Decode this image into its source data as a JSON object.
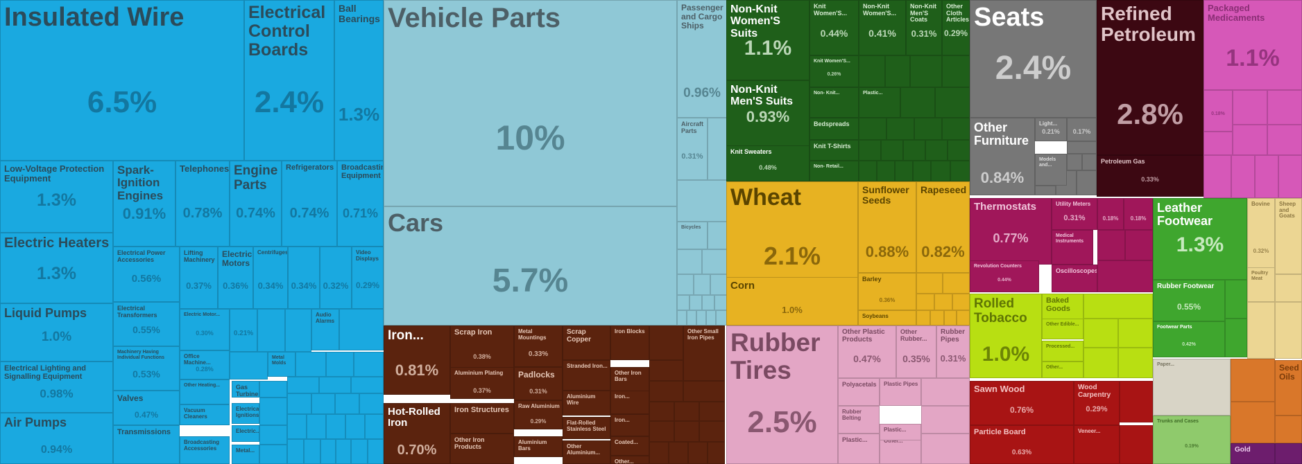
{
  "chart_data": {
    "type": "treemap",
    "unit": "%",
    "groups": [
      {
        "name": "machinery",
        "color": "#1aa9e0",
        "text_dark": "#126f96"
      },
      {
        "name": "transportation",
        "color": "#8fc8d6",
        "text_dark": "#4d7a86"
      },
      {
        "name": "textiles",
        "color": "#1f5f1a",
        "text_dark": "#d7ecd3"
      },
      {
        "name": "furniture",
        "color": "#777777",
        "text_dark": "#dddddd"
      },
      {
        "name": "minerals",
        "color": "#3c0812",
        "text_dark": "#d9b9bf"
      },
      {
        "name": "chemicals",
        "color": "#d658b8",
        "text_dark": "#8a2e75"
      },
      {
        "name": "vegetable",
        "color": "#e7b222",
        "text_dark": "#7a5a08"
      },
      {
        "name": "metals",
        "color": "#5b230e",
        "text_dark": "#e6c8b8"
      },
      {
        "name": "plastics",
        "color": "#e3a6c5",
        "text_dark": "#7a4a62"
      },
      {
        "name": "instruments",
        "color": "#a0175a",
        "text_dark": "#f1c6dc"
      },
      {
        "name": "footwear",
        "color": "#3fa62e",
        "text_dark": "#dff5d9"
      },
      {
        "name": "foodstuffs",
        "color": "#b8df12",
        "text_dark": "#5f7504"
      },
      {
        "name": "wood",
        "color": "#a81414",
        "text_dark": "#f3c2c2"
      },
      {
        "name": "animal",
        "color": "#ecd693",
        "text_dark": "#8a7540"
      },
      {
        "name": "stone",
        "color": "#d8d4c6",
        "text_dark": "#76725f"
      },
      {
        "name": "hides",
        "color": "#8fca6c",
        "text_dark": "#3e6b25"
      },
      {
        "name": "oils",
        "color": "#d9772a",
        "text_dark": "#7a3c0a"
      },
      {
        "name": "precious",
        "color": "#6d1d6d",
        "text_dark": "#f0d0f0"
      }
    ],
    "items": [
      {
        "name": "Insulated Wire",
        "value": 6.5,
        "value_label": "6.5%",
        "group": "machinery"
      },
      {
        "name": "Electrical Control Boards",
        "value": 2.4,
        "value_label": "2.4%",
        "group": "machinery"
      },
      {
        "name": "Ball Bearings",
        "value": 1.3,
        "value_label": "1.3%",
        "group": "machinery"
      },
      {
        "name": "Low-Voltage Protection Equipment",
        "value": 1.3,
        "value_label": "1.3%",
        "group": "machinery"
      },
      {
        "name": "Spark-Ignition Engines",
        "value": 0.91,
        "value_label": "0.91%",
        "group": "machinery"
      },
      {
        "name": "Telephones",
        "value": 0.78,
        "value_label": "0.78%",
        "group": "machinery"
      },
      {
        "name": "Engine Parts",
        "value": 0.74,
        "value_label": "0.74%",
        "group": "machinery"
      },
      {
        "name": "Refrigerators",
        "value": 0.74,
        "value_label": "0.74%",
        "group": "machinery"
      },
      {
        "name": "Broadcasting Equipment",
        "value": 0.71,
        "value_label": "0.71%",
        "group": "machinery"
      },
      {
        "name": "Electric Heaters",
        "value": 1.3,
        "value_label": "1.3%",
        "group": "machinery"
      },
      {
        "name": "Electrical Power Accessories",
        "value": 0.56,
        "value_label": "0.56%",
        "group": "machinery"
      },
      {
        "name": "Lifting Machinery",
        "value": 0.37,
        "value_label": "0.37%",
        "group": "machinery"
      },
      {
        "name": "Electric Motors",
        "value": 0.36,
        "value_label": "0.36%",
        "group": "machinery"
      },
      {
        "name": "Centrifuges",
        "value": 0.34,
        "value_label": "0.34%",
        "group": "machinery"
      },
      {
        "name": "",
        "value": 0.34,
        "value_label": "0.34%",
        "group": "machinery"
      },
      {
        "name": "",
        "value": 0.32,
        "value_label": "0.32%",
        "group": "machinery"
      },
      {
        "name": "Video Displays",
        "value": 0.29,
        "value_label": "0.29%",
        "group": "machinery"
      },
      {
        "name": "Liquid Pumps",
        "value": 1.0,
        "value_label": "1.0%",
        "group": "machinery"
      },
      {
        "name": "Electrical Transformers",
        "value": 0.55,
        "value_label": "0.55%",
        "group": "machinery"
      },
      {
        "name": "Electric Motor...",
        "value": 0.3,
        "value_label": "0.30%",
        "group": "machinery"
      },
      {
        "name": "",
        "value": 0.21,
        "value_label": "0.21%",
        "group": "machinery"
      },
      {
        "name": "Audio Alarms",
        "value": 0.2,
        "value_label": "",
        "group": "machinery"
      },
      {
        "name": "Machinery Having Individual Functions",
        "value": 0.53,
        "value_label": "0.53%",
        "group": "machinery"
      },
      {
        "name": "Office Machine...",
        "value": 0.28,
        "value_label": "0.28%",
        "group": "machinery"
      },
      {
        "name": "Metal Molds",
        "value": 0.2,
        "value_label": "",
        "group": "machinery"
      },
      {
        "name": "Electrical Lighting and Signalling Equipment",
        "value": 0.98,
        "value_label": "0.98%",
        "group": "machinery"
      },
      {
        "name": "Other Heating...",
        "value": 0.25,
        "value_label": "",
        "group": "machinery"
      },
      {
        "name": "Gas Turbines",
        "value": 0.2,
        "value_label": "",
        "group": "machinery"
      },
      {
        "name": "Valves",
        "value": 0.47,
        "value_label": "0.47%",
        "group": "machinery"
      },
      {
        "name": "Vacuum Cleaners",
        "value": 0.22,
        "value_label": "",
        "group": "machinery"
      },
      {
        "name": "Electrical Ignitions",
        "value": 0.2,
        "value_label": "",
        "group": "machinery"
      },
      {
        "name": "Air Pumps",
        "value": 0.94,
        "value_label": "0.94%",
        "group": "machinery"
      },
      {
        "name": "Transmissions",
        "value": 0.45,
        "value_label": "",
        "group": "machinery"
      },
      {
        "name": "Broadcasting Accessories",
        "value": 0.2,
        "value_label": "",
        "group": "machinery"
      },
      {
        "name": "Electric...",
        "value": 0.18,
        "value_label": "",
        "group": "machinery"
      },
      {
        "name": "Metal...",
        "value": 0.18,
        "value_label": "",
        "group": "machinery"
      },
      {
        "name": "Vehicle Parts",
        "value": 10,
        "value_label": "10%",
        "group": "transportation"
      },
      {
        "name": "Cars",
        "value": 5.7,
        "value_label": "5.7%",
        "group": "transportation"
      },
      {
        "name": "Passenger and Cargo Ships",
        "value": 0.96,
        "value_label": "0.96%",
        "group": "transportation"
      },
      {
        "name": "Aircraft Parts",
        "value": 0.31,
        "value_label": "0.31%",
        "group": "transportation"
      },
      {
        "name": "Bicycles",
        "value": 0.2,
        "value_label": "",
        "group": "transportation"
      },
      {
        "name": "Non-Knit Women'S Suits",
        "value": 1.1,
        "value_label": "1.1%",
        "group": "textiles"
      },
      {
        "name": "Knit Women'S...",
        "value": 0.44,
        "value_label": "0.44%",
        "group": "textiles"
      },
      {
        "name": "Non-Knit Women'S...",
        "value": 0.41,
        "value_label": "0.41%",
        "group": "textiles"
      },
      {
        "name": "Non-Knit Men'S Coats",
        "value": 0.31,
        "value_label": "0.31%",
        "group": "textiles"
      },
      {
        "name": "Other Cloth Articles",
        "value": 0.29,
        "value_label": "0.29%",
        "group": "textiles"
      },
      {
        "name": "Non-Knit Men'S Suits",
        "value": 0.93,
        "value_label": "0.93%",
        "group": "textiles"
      },
      {
        "name": "Knit Women'S...",
        "value": 0.26,
        "value_label": "0.26%",
        "group": "textiles"
      },
      {
        "name": "Non- Knit...",
        "value": 0.2,
        "value_label": "",
        "group": "textiles"
      },
      {
        "name": "Plastic...",
        "value": 0.2,
        "value_label": "",
        "group": "textiles"
      },
      {
        "name": "Bedspreads",
        "value": 0.2,
        "value_label": "",
        "group": "textiles"
      },
      {
        "name": "Knit Sweaters",
        "value": 0.48,
        "value_label": "0.48%",
        "group": "textiles"
      },
      {
        "name": "Knit T-Shirts",
        "value": 0.2,
        "value_label": "",
        "group": "textiles"
      },
      {
        "name": "Non- Retail...",
        "value": 0.18,
        "value_label": "",
        "group": "textiles"
      },
      {
        "name": "Seats",
        "value": 2.4,
        "value_label": "2.4%",
        "group": "furniture"
      },
      {
        "name": "Other Furniture",
        "value": 0.84,
        "value_label": "0.84%",
        "group": "furniture"
      },
      {
        "name": "Light...",
        "value": 0.21,
        "value_label": "0.21%",
        "group": "furniture"
      },
      {
        "name": "",
        "value": 0.17,
        "value_label": "0.17%",
        "group": "furniture"
      },
      {
        "name": "Models and...",
        "value": 0.15,
        "value_label": "",
        "group": "furniture"
      },
      {
        "name": "Refined Petroleum",
        "value": 2.8,
        "value_label": "2.8%",
        "group": "minerals"
      },
      {
        "name": "Petroleum Gas",
        "value": 0.33,
        "value_label": "0.33%",
        "group": "minerals"
      },
      {
        "name": "Packaged Medicaments",
        "value": 1.1,
        "value_label": "1.1%",
        "group": "chemicals"
      },
      {
        "name": "",
        "value": 0.18,
        "value_label": "0.18%",
        "group": "chemicals"
      },
      {
        "name": "Wheat",
        "value": 2.1,
        "value_label": "2.1%",
        "group": "vegetable"
      },
      {
        "name": "Sunflower Seeds",
        "value": 0.88,
        "value_label": "0.88%",
        "group": "vegetable"
      },
      {
        "name": "Rapeseed",
        "value": 0.82,
        "value_label": "0.82%",
        "group": "vegetable"
      },
      {
        "name": "Corn",
        "value": 1.0,
        "value_label": "1.0%",
        "group": "vegetable"
      },
      {
        "name": "Barley",
        "value": 0.36,
        "value_label": "0.36%",
        "group": "vegetable"
      },
      {
        "name": "Soybeans",
        "value": 0.2,
        "value_label": "",
        "group": "vegetable"
      },
      {
        "name": "Iron...",
        "value": 0.81,
        "value_label": "0.81%",
        "group": "metals"
      },
      {
        "name": "Scrap Iron",
        "value": 0.38,
        "value_label": "0.38%",
        "group": "metals"
      },
      {
        "name": "Metal Mountings",
        "value": 0.33,
        "value_label": "0.33%",
        "group": "metals"
      },
      {
        "name": "Scrap Copper",
        "value": 0.3,
        "value_label": "",
        "group": "metals"
      },
      {
        "name": "Iron Blocks",
        "value": 0.2,
        "value_label": "",
        "group": "metals"
      },
      {
        "name": "Other Small Iron Pipes",
        "value": 0.2,
        "value_label": "",
        "group": "metals"
      },
      {
        "name": "Aluminium Plating",
        "value": 0.37,
        "value_label": "0.37%",
        "group": "metals"
      },
      {
        "name": "Padlocks",
        "value": 0.31,
        "value_label": "0.31%",
        "group": "metals"
      },
      {
        "name": "Stranded Iron...",
        "value": 0.25,
        "value_label": "",
        "group": "metals"
      },
      {
        "name": "Other Iron Bars",
        "value": 0.2,
        "value_label": "",
        "group": "metals"
      },
      {
        "name": "Hot-Rolled Iron",
        "value": 0.7,
        "value_label": "0.70%",
        "group": "metals"
      },
      {
        "name": "Iron Structures",
        "value": 0.3,
        "value_label": "",
        "group": "metals"
      },
      {
        "name": "Raw Aluminium",
        "value": 0.29,
        "value_label": "0.29%",
        "group": "metals"
      },
      {
        "name": "Aluminium Wire",
        "value": 0.22,
        "value_label": "",
        "group": "metals"
      },
      {
        "name": "Iron...",
        "value": 0.18,
        "value_label": "",
        "group": "metals"
      },
      {
        "name": "Flat-Rolled Stainless Steel",
        "value": 0.22,
        "value_label": "",
        "group": "metals"
      },
      {
        "name": "Iron...",
        "value": 0.18,
        "value_label": "",
        "group": "metals"
      },
      {
        "name": "Other Iron Products",
        "value": 0.28,
        "value_label": "",
        "group": "metals"
      },
      {
        "name": "Aluminium Bars",
        "value": 0.2,
        "value_label": "",
        "group": "metals"
      },
      {
        "name": "Other Aluminium...",
        "value": 0.2,
        "value_label": "",
        "group": "metals"
      },
      {
        "name": "Coated...",
        "value": 0.18,
        "value_label": "",
        "group": "metals"
      },
      {
        "name": "Other...",
        "value": 0.18,
        "value_label": "",
        "group": "metals"
      },
      {
        "name": "Rubber Tires",
        "value": 2.5,
        "value_label": "2.5%",
        "group": "plastics"
      },
      {
        "name": "Other Plastic Products",
        "value": 0.47,
        "value_label": "0.47%",
        "group": "plastics"
      },
      {
        "name": "Other Rubber...",
        "value": 0.35,
        "value_label": "0.35%",
        "group": "plastics"
      },
      {
        "name": "Rubber Pipes",
        "value": 0.31,
        "value_label": "0.31%",
        "group": "plastics"
      },
      {
        "name": "Polyacetals",
        "value": 0.25,
        "value_label": "",
        "group": "plastics"
      },
      {
        "name": "Rubber Belting",
        "value": 0.22,
        "value_label": "",
        "group": "plastics"
      },
      {
        "name": "Plastic Pipes",
        "value": 0.2,
        "value_label": "",
        "group": "plastics"
      },
      {
        "name": "Other...",
        "value": 0.18,
        "value_label": "",
        "group": "plastics"
      },
      {
        "name": "Plastic...",
        "value": 0.2,
        "value_label": "",
        "group": "plastics"
      },
      {
        "name": "Plastic...",
        "value": 0.18,
        "value_label": "",
        "group": "plastics"
      },
      {
        "name": "Thermostats",
        "value": 0.77,
        "value_label": "0.77%",
        "group": "instruments"
      },
      {
        "name": "Utility Meters",
        "value": 0.31,
        "value_label": "0.31%",
        "group": "instruments"
      },
      {
        "name": "",
        "value": 0.18,
        "value_label": "0.18%",
        "group": "instruments"
      },
      {
        "name": "",
        "value": 0.18,
        "value_label": "0.18%",
        "group": "instruments"
      },
      {
        "name": "Medical Instruments",
        "value": 0.2,
        "value_label": "",
        "group": "instruments"
      },
      {
        "name": "Revolution Counters",
        "value": 0.44,
        "value_label": "0.44%",
        "group": "instruments"
      },
      {
        "name": "Oscilloscopes",
        "value": 0.22,
        "value_label": "",
        "group": "instruments"
      },
      {
        "name": "Leather Footwear",
        "value": 1.3,
        "value_label": "1.3%",
        "group": "footwear"
      },
      {
        "name": "Rubber Footwear",
        "value": 0.55,
        "value_label": "0.55%",
        "group": "footwear"
      },
      {
        "name": "Footwear Parts",
        "value": 0.42,
        "value_label": "0.42%",
        "group": "footwear"
      },
      {
        "name": "Rolled Tobacco",
        "value": 1.0,
        "value_label": "1.0%",
        "group": "foodstuffs"
      },
      {
        "name": "Baked Goods",
        "value": 0.3,
        "value_label": "",
        "group": "foodstuffs"
      },
      {
        "name": "Other Edible...",
        "value": 0.2,
        "value_label": "",
        "group": "foodstuffs"
      },
      {
        "name": "Processed...",
        "value": 0.2,
        "value_label": "",
        "group": "foodstuffs"
      },
      {
        "name": "Other...",
        "value": 0.18,
        "value_label": "",
        "group": "foodstuffs"
      },
      {
        "name": "Sawn Wood",
        "value": 0.76,
        "value_label": "0.76%",
        "group": "wood"
      },
      {
        "name": "Wood Carpentry",
        "value": 0.29,
        "value_label": "0.29%",
        "group": "wood"
      },
      {
        "name": "Particle Board",
        "value": 0.63,
        "value_label": "0.63%",
        "group": "wood"
      },
      {
        "name": "Veneer...",
        "value": 0.2,
        "value_label": "",
        "group": "wood"
      },
      {
        "name": "Bovine",
        "value": 0.32,
        "value_label": "0.32%",
        "group": "animal"
      },
      {
        "name": "Sheep and Goats",
        "value": 0.2,
        "value_label": "",
        "group": "animal"
      },
      {
        "name": "Poultry Meat",
        "value": 0.2,
        "value_label": "",
        "group": "animal"
      },
      {
        "name": "Paper...",
        "value": 0.2,
        "value_label": "",
        "group": "stone"
      },
      {
        "name": "Trunks and Cases",
        "value": 0.19,
        "value_label": "0.19%",
        "group": "hides"
      },
      {
        "name": "Seed Oils",
        "value": 0.2,
        "value_label": "",
        "group": "oils"
      },
      {
        "name": "Gold",
        "value": 0.2,
        "value_label": "",
        "group": "precious"
      }
    ]
  }
}
